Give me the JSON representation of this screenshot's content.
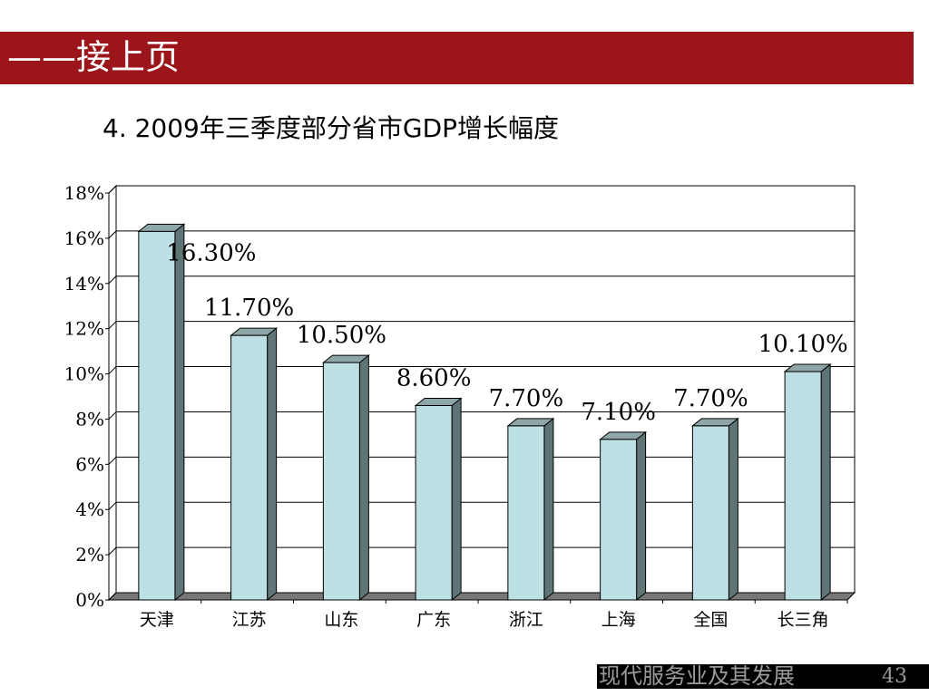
{
  "header": {
    "text": "——接上页"
  },
  "slide_title": "4. 2009年三季度部分省市GDP增长幅度",
  "footer": {
    "text": "现代服务业及其发展",
    "page": "43"
  },
  "colors": {
    "header": "#9b151b",
    "bar_front": "#bde0e4",
    "bar_side": "#5f7474",
    "bar_top": "#8fa6a8"
  },
  "chart_data": {
    "type": "bar",
    "title": "2009年三季度部分省市GDP增长幅度",
    "categories": [
      "天津",
      "江苏",
      "山东",
      "广东",
      "浙江",
      "上海",
      "全国",
      "长三角"
    ],
    "values": [
      16.3,
      11.7,
      10.5,
      8.6,
      7.7,
      7.1,
      7.7,
      10.1
    ],
    "data_labels": [
      "16.30%",
      "11.70%",
      "10.50%",
      "8.60%",
      "7.70%",
      "7.10%",
      "7.70%",
      "10.10%"
    ],
    "yticks": [
      "0%",
      "2%",
      "4%",
      "6%",
      "8%",
      "10%",
      "12%",
      "14%",
      "16%",
      "18%"
    ],
    "ylim": [
      0,
      18
    ],
    "grid": true,
    "legend": "none",
    "xlabel": "",
    "ylabel": ""
  }
}
